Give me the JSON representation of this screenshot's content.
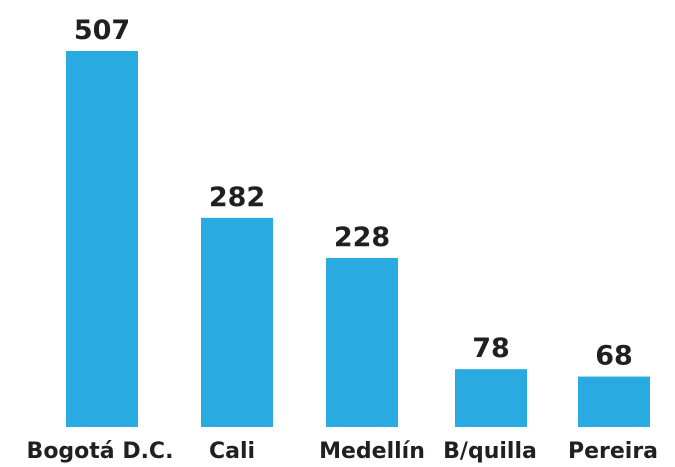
{
  "chart_data": {
    "type": "bar",
    "categories": [
      "Bogotá D.C.",
      "Cali",
      "Medellín",
      "B/quilla",
      "Pereira"
    ],
    "values": [
      507,
      282,
      228,
      78,
      68
    ],
    "color": "#29abe2"
  }
}
